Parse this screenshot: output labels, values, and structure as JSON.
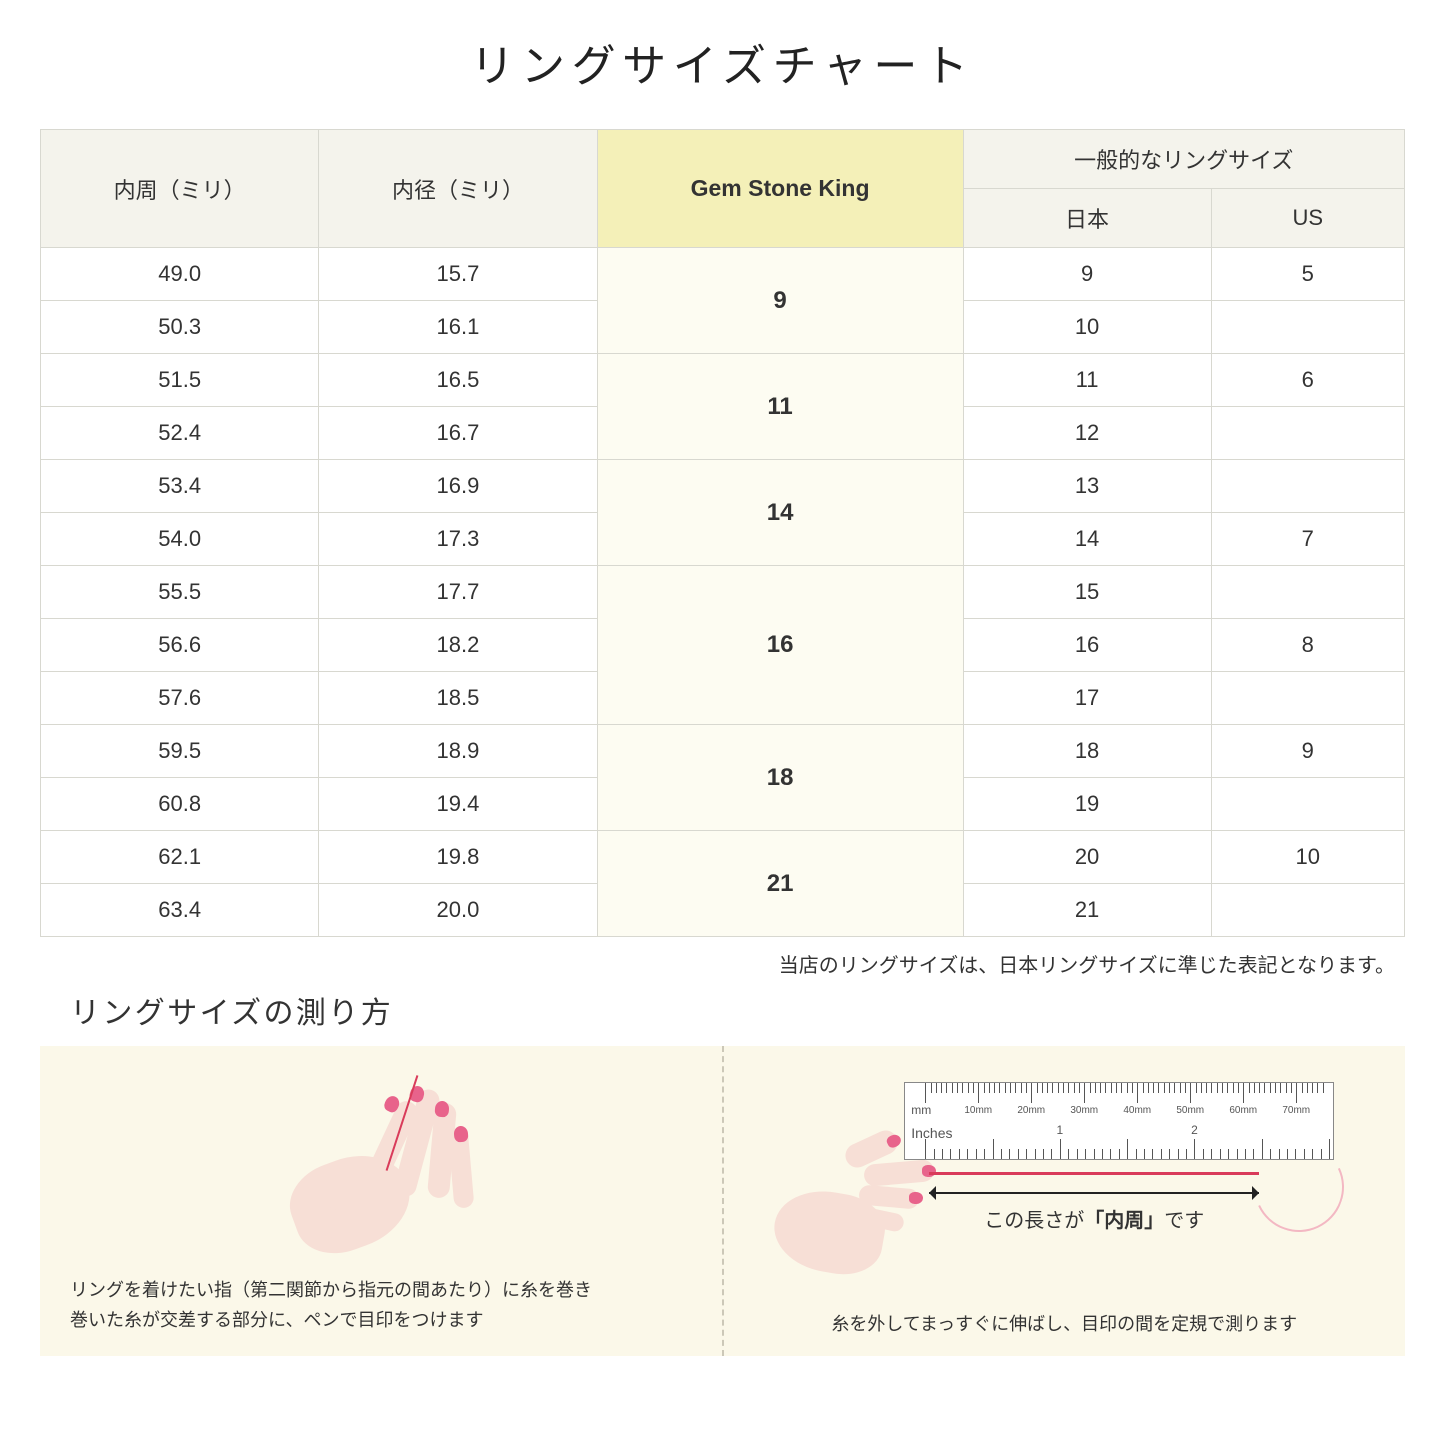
{
  "title": "リングサイズチャート",
  "table": {
    "headers": {
      "circumference": "内周（ミリ）",
      "diameter": "内径（ミリ）",
      "gsk": "Gem Stone King",
      "general": "一般的なリングサイズ",
      "japan": "日本",
      "us": "US"
    },
    "groups": [
      {
        "gsk": "9",
        "rows": [
          {
            "circ": "49.0",
            "dia": "15.7",
            "jp": "9",
            "us": "5"
          },
          {
            "circ": "50.3",
            "dia": "16.1",
            "jp": "10",
            "us": ""
          }
        ]
      },
      {
        "gsk": "11",
        "rows": [
          {
            "circ": "51.5",
            "dia": "16.5",
            "jp": "11",
            "us": "6"
          },
          {
            "circ": "52.4",
            "dia": "16.7",
            "jp": "12",
            "us": ""
          }
        ]
      },
      {
        "gsk": "14",
        "rows": [
          {
            "circ": "53.4",
            "dia": "16.9",
            "jp": "13",
            "us": ""
          },
          {
            "circ": "54.0",
            "dia": "17.3",
            "jp": "14",
            "us": "7"
          }
        ]
      },
      {
        "gsk": "16",
        "rows": [
          {
            "circ": "55.5",
            "dia": "17.7",
            "jp": "15",
            "us": ""
          },
          {
            "circ": "56.6",
            "dia": "18.2",
            "jp": "16",
            "us": "8"
          },
          {
            "circ": "57.6",
            "dia": "18.5",
            "jp": "17",
            "us": ""
          }
        ]
      },
      {
        "gsk": "18",
        "rows": [
          {
            "circ": "59.5",
            "dia": "18.9",
            "jp": "18",
            "us": "9"
          },
          {
            "circ": "60.8",
            "dia": "19.4",
            "jp": "19",
            "us": ""
          }
        ]
      },
      {
        "gsk": "21",
        "rows": [
          {
            "circ": "62.1",
            "dia": "19.8",
            "jp": "20",
            "us": "10"
          },
          {
            "circ": "63.4",
            "dia": "20.0",
            "jp": "21",
            "us": ""
          }
        ]
      }
    ]
  },
  "note": "当店のリングサイズは、日本リングサイズに準じた表記となります。",
  "howto_title": "リングサイズの測り方",
  "guide": {
    "left_line1": "リングを着けたい指（第二関節から指元の間あたり）に糸を巻き",
    "left_line2": "巻いた糸が交差する部分に、ペンで目印をつけます",
    "right_arrow_pre": "この長さが",
    "right_arrow_bold": "「内周」",
    "right_arrow_post": "です",
    "right_text": "糸を外してまっすぐに伸ばし、目印の間を定規で測ります"
  },
  "ruler": {
    "mm_label": "mm",
    "inches_label": "Inches",
    "mm_ticks": [
      "10mm",
      "20mm",
      "30mm",
      "40mm",
      "50mm",
      "60mm",
      "70mm"
    ],
    "inch_labels": [
      "1",
      "2"
    ]
  },
  "colors": {
    "header_bg": "#f4f3ec",
    "gsk_header_bg": "#f4f0b8",
    "gsk_cell_bg": "#fdfcf2",
    "border": "#d8d8d0",
    "guide_bg": "#fbf8e9",
    "skin": "#f7dfd6",
    "nail": "#e8638b",
    "thread": "#d93b5a"
  }
}
